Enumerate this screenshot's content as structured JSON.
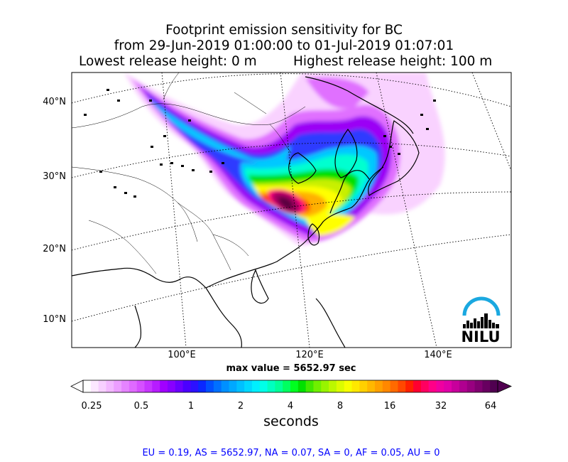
{
  "title": {
    "line1": "Footprint emission sensitivity for BC",
    "line2": "from 29-Jun-2019 01:00:00 to 01-Jul-2019 01:07:01",
    "lowest": "Lowest release height: 0 m",
    "highest": "Highest release height: 100 m"
  },
  "map": {
    "lat_labels": [
      "40°N",
      "30°N",
      "20°N",
      "10°N"
    ],
    "lon_labels": [
      "100°E",
      "120°E",
      "140°E"
    ],
    "logo_text": "NILU",
    "max_value": "max value = 5652.97 sec",
    "plume_colors": [
      "#f9d2ff",
      "#e070ff",
      "#9b00f5",
      "#2f3bff",
      "#00c8ff",
      "#00ffd0",
      "#00e000",
      "#c8f000",
      "#ffff00",
      "#ffb000",
      "#ff4000",
      "#ff0080",
      "#a00060",
      "#5a0040"
    ]
  },
  "colorbar": {
    "ticks": [
      "0.25",
      "0.5",
      "1",
      "2",
      "4",
      "8",
      "16",
      "32",
      "64"
    ],
    "label": "seconds",
    "colors": [
      "#ffffff",
      "#fce8ff",
      "#f7d0ff",
      "#f2b8ff",
      "#ec9eff",
      "#e584ff",
      "#df6aff",
      "#d650ff",
      "#c736ff",
      "#b71cff",
      "#a100ff",
      "#8800ff",
      "#6a00ff",
      "#4b00ff",
      "#2c10ff",
      "#0a28ff",
      "#0050ff",
      "#0070ff",
      "#0090ff",
      "#00a8ff",
      "#00c0ff",
      "#00d8ff",
      "#00f0ff",
      "#00ffe8",
      "#00ffc0",
      "#00ff98",
      "#00ff60",
      "#00ff20",
      "#00e000",
      "#40e800",
      "#70f000",
      "#98f400",
      "#bcf800",
      "#dcfc00",
      "#f8ff00",
      "#ffe800",
      "#ffd000",
      "#ffb800",
      "#ffa000",
      "#ff8800",
      "#ff6a00",
      "#ff4800",
      "#ff2000",
      "#ff0030",
      "#ff0060",
      "#ff0088",
      "#f000a0",
      "#e000a8",
      "#c8009c",
      "#b00090",
      "#980080",
      "#800070",
      "#680060",
      "#500050"
    ]
  },
  "regions": "EU = 0.19,  AS = 5652.97,  NA = 0.07,  SA = 0,  AF = 0.05,  AU = 0"
}
